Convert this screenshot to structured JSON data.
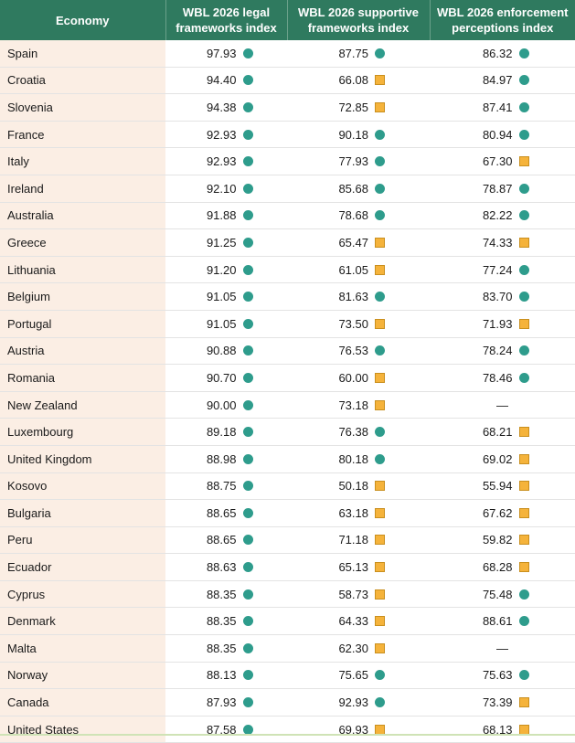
{
  "header": {
    "economy": "Economy",
    "legal": [
      "WBL 2026 legal",
      "frameworks index"
    ],
    "supportive": [
      "WBL 2026 supportive",
      "frameworks index"
    ],
    "enforcement": [
      "WBL 2026 enforcement",
      "perceptions index"
    ]
  },
  "legend": {
    "circle_color": "#2e9c8c",
    "square_color": "#f5b33b",
    "header_color": "#2f7a5f",
    "economy_bg": "#fbeee4"
  },
  "rows": [
    {
      "economy": "Spain",
      "legal": "97.93",
      "legal_mark": "circle",
      "supportive": "87.75",
      "supportive_mark": "circle",
      "enforcement": "86.32",
      "enforcement_mark": "circle"
    },
    {
      "economy": "Croatia",
      "legal": "94.40",
      "legal_mark": "circle",
      "supportive": "66.08",
      "supportive_mark": "square",
      "enforcement": "84.97",
      "enforcement_mark": "circle"
    },
    {
      "economy": "Slovenia",
      "legal": "94.38",
      "legal_mark": "circle",
      "supportive": "72.85",
      "supportive_mark": "square",
      "enforcement": "87.41",
      "enforcement_mark": "circle"
    },
    {
      "economy": "France",
      "legal": "92.93",
      "legal_mark": "circle",
      "supportive": "90.18",
      "supportive_mark": "circle",
      "enforcement": "80.94",
      "enforcement_mark": "circle"
    },
    {
      "economy": "Italy",
      "legal": "92.93",
      "legal_mark": "circle",
      "supportive": "77.93",
      "supportive_mark": "circle",
      "enforcement": "67.30",
      "enforcement_mark": "square"
    },
    {
      "economy": "Ireland",
      "legal": "92.10",
      "legal_mark": "circle",
      "supportive": "85.68",
      "supportive_mark": "circle",
      "enforcement": "78.87",
      "enforcement_mark": "circle"
    },
    {
      "economy": "Australia",
      "legal": "91.88",
      "legal_mark": "circle",
      "supportive": "78.68",
      "supportive_mark": "circle",
      "enforcement": "82.22",
      "enforcement_mark": "circle"
    },
    {
      "economy": "Greece",
      "legal": "91.25",
      "legal_mark": "circle",
      "supportive": "65.47",
      "supportive_mark": "square",
      "enforcement": "74.33",
      "enforcement_mark": "square"
    },
    {
      "economy": "Lithuania",
      "legal": "91.20",
      "legal_mark": "circle",
      "supportive": "61.05",
      "supportive_mark": "square",
      "enforcement": "77.24",
      "enforcement_mark": "circle"
    },
    {
      "economy": "Belgium",
      "legal": "91.05",
      "legal_mark": "circle",
      "supportive": "81.63",
      "supportive_mark": "circle",
      "enforcement": "83.70",
      "enforcement_mark": "circle"
    },
    {
      "economy": "Portugal",
      "legal": "91.05",
      "legal_mark": "circle",
      "supportive": "73.50",
      "supportive_mark": "square",
      "enforcement": "71.93",
      "enforcement_mark": "square"
    },
    {
      "economy": "Austria",
      "legal": "90.88",
      "legal_mark": "circle",
      "supportive": "76.53",
      "supportive_mark": "circle",
      "enforcement": "78.24",
      "enforcement_mark": "circle"
    },
    {
      "economy": "Romania",
      "legal": "90.70",
      "legal_mark": "circle",
      "supportive": "60.00",
      "supportive_mark": "square",
      "enforcement": "78.46",
      "enforcement_mark": "circle"
    },
    {
      "economy": "New Zealand",
      "legal": "90.00",
      "legal_mark": "circle",
      "supportive": "73.18",
      "supportive_mark": "square",
      "enforcement": "—",
      "enforcement_mark": "none"
    },
    {
      "economy": "Luxembourg",
      "legal": "89.18",
      "legal_mark": "circle",
      "supportive": "76.38",
      "supportive_mark": "circle",
      "enforcement": "68.21",
      "enforcement_mark": "square"
    },
    {
      "economy": "United Kingdom",
      "legal": "88.98",
      "legal_mark": "circle",
      "supportive": "80.18",
      "supportive_mark": "circle",
      "enforcement": "69.02",
      "enforcement_mark": "square"
    },
    {
      "economy": "Kosovo",
      "legal": "88.75",
      "legal_mark": "circle",
      "supportive": "50.18",
      "supportive_mark": "square",
      "enforcement": "55.94",
      "enforcement_mark": "square"
    },
    {
      "economy": "Bulgaria",
      "legal": "88.65",
      "legal_mark": "circle",
      "supportive": "63.18",
      "supportive_mark": "square",
      "enforcement": "67.62",
      "enforcement_mark": "square"
    },
    {
      "economy": "Peru",
      "legal": "88.65",
      "legal_mark": "circle",
      "supportive": "71.18",
      "supportive_mark": "square",
      "enforcement": "59.82",
      "enforcement_mark": "square"
    },
    {
      "economy": "Ecuador",
      "legal": "88.63",
      "legal_mark": "circle",
      "supportive": "65.13",
      "supportive_mark": "square",
      "enforcement": "68.28",
      "enforcement_mark": "square"
    },
    {
      "economy": "Cyprus",
      "legal": "88.35",
      "legal_mark": "circle",
      "supportive": "58.73",
      "supportive_mark": "square",
      "enforcement": "75.48",
      "enforcement_mark": "circle"
    },
    {
      "economy": "Denmark",
      "legal": "88.35",
      "legal_mark": "circle",
      "supportive": "64.33",
      "supportive_mark": "square",
      "enforcement": "88.61",
      "enforcement_mark": "circle"
    },
    {
      "economy": "Malta",
      "legal": "88.35",
      "legal_mark": "circle",
      "supportive": "62.30",
      "supportive_mark": "square",
      "enforcement": "—",
      "enforcement_mark": "none"
    },
    {
      "economy": "Norway",
      "legal": "88.13",
      "legal_mark": "circle",
      "supportive": "75.65",
      "supportive_mark": "circle",
      "enforcement": "75.63",
      "enforcement_mark": "circle"
    },
    {
      "economy": "Canada",
      "legal": "87.93",
      "legal_mark": "circle",
      "supportive": "92.93",
      "supportive_mark": "circle",
      "enforcement": "73.39",
      "enforcement_mark": "square"
    },
    {
      "economy": "United States",
      "legal": "87.58",
      "legal_mark": "circle",
      "supportive": "69.93",
      "supportive_mark": "square",
      "enforcement": "68.13",
      "enforcement_mark": "square"
    }
  ]
}
